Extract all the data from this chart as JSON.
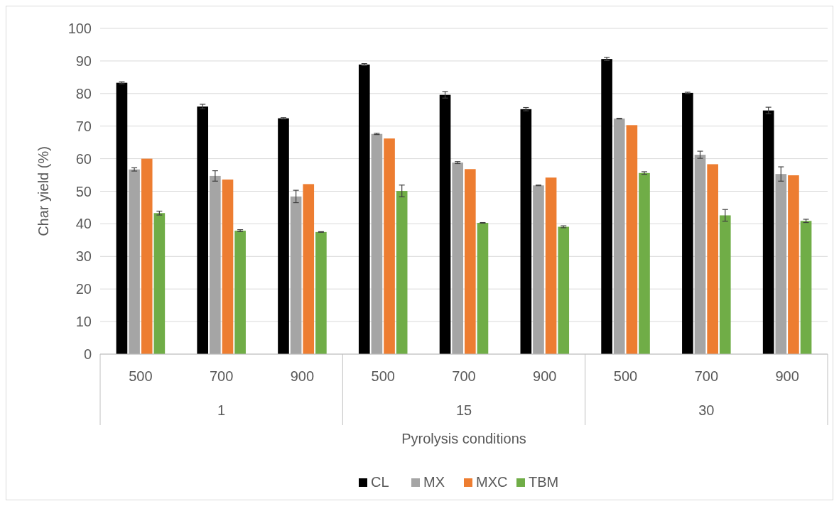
{
  "chart_data": {
    "type": "bar",
    "xlabel": "Pyrolysis conditions",
    "ylabel": "Char yield (%)",
    "categories": [
      "500",
      "700",
      "900",
      "500",
      "700",
      "900",
      "500",
      "700",
      "900"
    ],
    "annotations": [
      "1",
      "15",
      "30"
    ],
    "series": [
      {
        "name": "CL",
        "color": "#000000",
        "values": [
          83.3,
          76,
          72.4,
          88.9,
          79.6,
          75.2,
          90.6,
          80.2,
          74.8
        ],
        "errors": [
          0.3,
          0.7,
          0.2,
          0.3,
          1.0,
          0.5,
          0.5,
          0.2,
          1.0
        ]
      },
      {
        "name": "MX",
        "color": "#a5a5a5",
        "values": [
          56.7,
          54.7,
          48.4,
          67.6,
          58.8,
          51.8,
          72.3,
          61.2,
          55.3
        ],
        "errors": [
          0.5,
          1.6,
          1.9,
          0.2,
          0.3,
          0.1,
          0.1,
          1.1,
          2.2
        ]
      },
      {
        "name": "MXC",
        "color": "#ed7d31",
        "values": [
          60,
          53.6,
          52.2,
          66.2,
          56.8,
          54.2,
          70.3,
          58.3,
          54.9
        ]
      },
      {
        "name": "TBM",
        "color": "#70ad47",
        "values": [
          43.3,
          37.9,
          37.5,
          50.1,
          40.3,
          39.1,
          55.6,
          42.6,
          40.9
        ],
        "errors": [
          0.6,
          0.3,
          0.1,
          1.8,
          0.1,
          0.3,
          0.4,
          1.8,
          0.5
        ]
      }
    ],
    "ylim": [
      0,
      100
    ],
    "yticks": [
      0,
      10,
      20,
      30,
      40,
      50,
      60,
      70,
      80,
      90,
      100
    ],
    "grid": "y",
    "legend": "bottom"
  }
}
